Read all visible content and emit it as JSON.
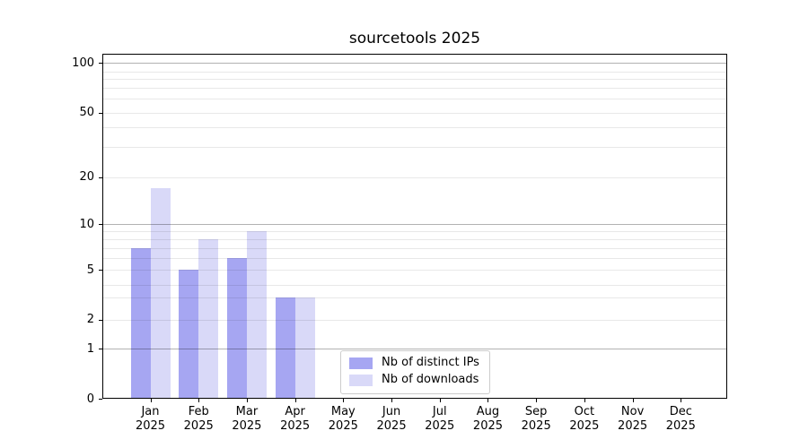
{
  "chart_data": {
    "type": "bar",
    "title": "sourcetools 2025",
    "categories": [
      {
        "month": "Jan",
        "year": "2025"
      },
      {
        "month": "Feb",
        "year": "2025"
      },
      {
        "month": "Mar",
        "year": "2025"
      },
      {
        "month": "Apr",
        "year": "2025"
      },
      {
        "month": "May",
        "year": "2025"
      },
      {
        "month": "Jun",
        "year": "2025"
      },
      {
        "month": "Jul",
        "year": "2025"
      },
      {
        "month": "Aug",
        "year": "2025"
      },
      {
        "month": "Sep",
        "year": "2025"
      },
      {
        "month": "Oct",
        "year": "2025"
      },
      {
        "month": "Nov",
        "year": "2025"
      },
      {
        "month": "Dec",
        "year": "2025"
      }
    ],
    "series": [
      {
        "name": "Nb of distinct IPs",
        "color": "#a6a6f2",
        "values": [
          7,
          5,
          6,
          3,
          null,
          null,
          null,
          null,
          null,
          null,
          null,
          null
        ]
      },
      {
        "name": "Nb of downloads",
        "color": "#d9d9f8",
        "values": [
          17,
          8,
          9,
          3,
          null,
          null,
          null,
          null,
          null,
          null,
          null,
          null
        ]
      }
    ],
    "y_axis": {
      "scale": "asinh (linear near 0, logarithmic above)",
      "tick_values": [
        0,
        1,
        2,
        5,
        10,
        20,
        50,
        100
      ],
      "tick_labels": [
        "0",
        "1",
        "2",
        "5",
        "10",
        "20",
        "50",
        "100"
      ],
      "major_gridline_values": [
        1,
        10,
        100
      ],
      "minor_gridline_values": [
        2,
        3,
        4,
        5,
        6,
        7,
        8,
        9,
        20,
        30,
        40,
        50,
        60,
        70,
        80,
        90
      ]
    },
    "x_axis": {
      "xlabel": "",
      "ylabel": ""
    },
    "legend": {
      "position": "lower center",
      "entries": [
        "Nb of distinct IPs",
        "Nb of downloads"
      ]
    }
  }
}
